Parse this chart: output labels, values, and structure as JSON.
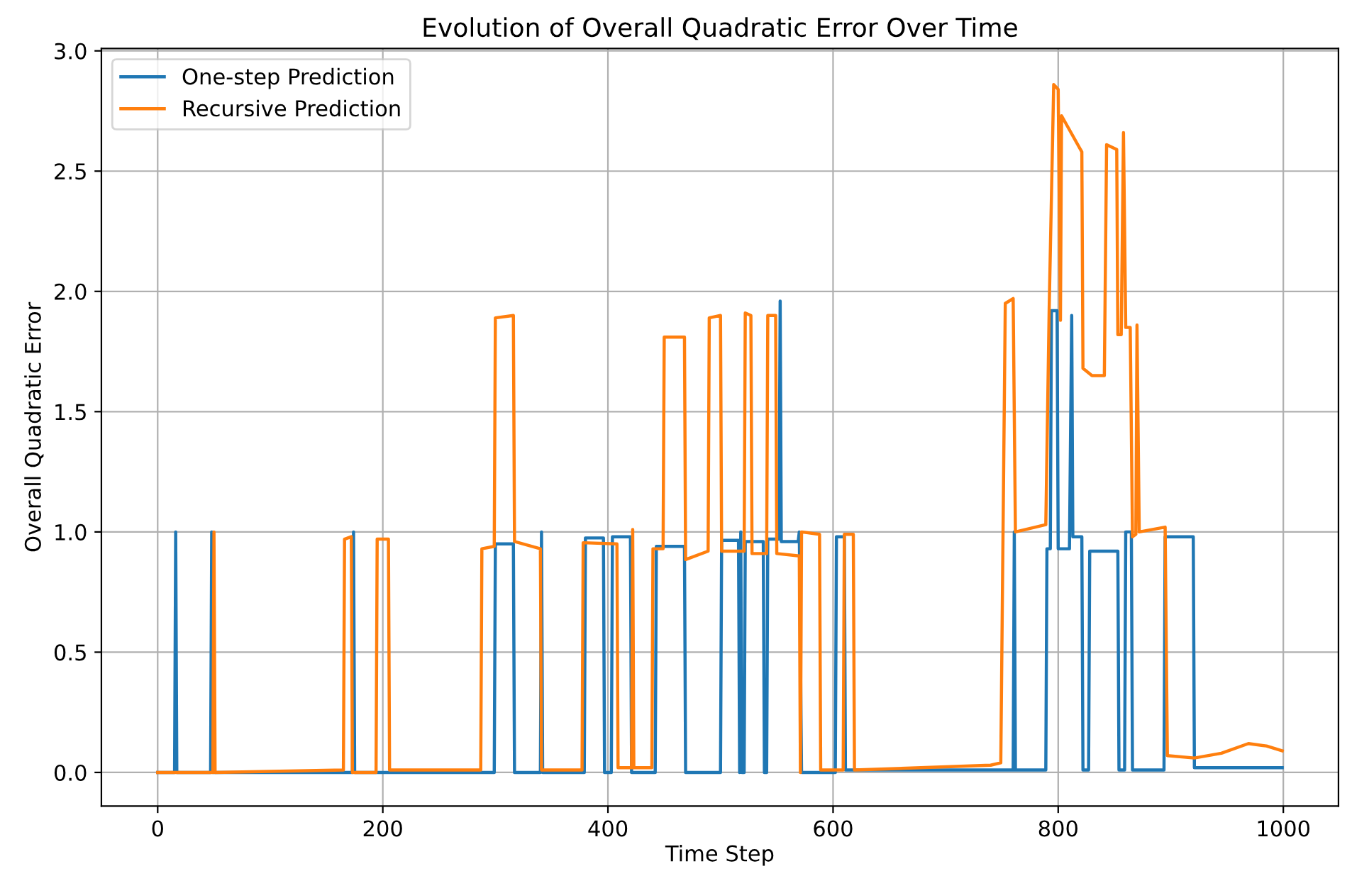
{
  "chart_data": {
    "type": "line",
    "title": "Evolution of Overall Quadratic Error Over Time",
    "xlabel": "Time Step",
    "ylabel": "Overall Quadratic Error",
    "xlim": [
      -50,
      1049
    ],
    "ylim": [
      -0.14,
      3.01
    ],
    "xticks": [
      0,
      200,
      400,
      600,
      800,
      1000
    ],
    "yticks": [
      {
        "value": 0,
        "label": "0.0"
      },
      {
        "value": 0.5,
        "label": "0.5"
      },
      {
        "value": 1,
        "label": "1.0"
      },
      {
        "value": 1.5,
        "label": "1.5"
      },
      {
        "value": 2,
        "label": "2.0"
      },
      {
        "value": 2.5,
        "label": "2.5"
      },
      {
        "value": 3,
        "label": "3.0"
      }
    ],
    "grid": true,
    "legend": "top left",
    "line_style": "solid",
    "marker": "none",
    "series": [
      {
        "name": "One-step Prediction",
        "color": "#1f77b4",
        "x": [
          0,
          15,
          16,
          17,
          47,
          48,
          49,
          173,
          174,
          175,
          299,
          300,
          316,
          317,
          340,
          341,
          342,
          379,
          380,
          396,
          397,
          403,
          404,
          420,
          421,
          442,
          443,
          468,
          469,
          500,
          501,
          516,
          517,
          518,
          519,
          521,
          522,
          538,
          539,
          541,
          542,
          552,
          553,
          554,
          569,
          570,
          572,
          602,
          603,
          610,
          611,
          760,
          761,
          762,
          789,
          790,
          793,
          794,
          799,
          800,
          810,
          812,
          813,
          821,
          822,
          827,
          828,
          853,
          854,
          859,
          860,
          865,
          866,
          894,
          895,
          920,
          921,
          999
        ],
        "values": [
          0,
          0,
          1.0,
          0,
          0,
          1.0,
          0,
          0,
          1.0,
          0,
          0,
          0.95,
          0.95,
          0,
          0,
          1.0,
          0,
          0,
          0.975,
          0.975,
          0,
          0,
          0.98,
          0.98,
          0,
          0,
          0.94,
          0.94,
          0,
          0,
          0.965,
          0.965,
          0,
          1.0,
          0,
          0,
          0.96,
          0.96,
          0,
          0,
          0.97,
          0.97,
          1.96,
          0.96,
          0.96,
          1.0,
          0,
          0,
          0.98,
          0.98,
          0.01,
          0.01,
          1.0,
          0.01,
          0.01,
          0.93,
          0.93,
          1.92,
          1.92,
          0.93,
          0.93,
          1.9,
          0.98,
          0.98,
          0.01,
          0.01,
          0.92,
          0.92,
          0.01,
          0.01,
          1.0,
          1.0,
          0.01,
          0.01,
          0.98,
          0.98,
          0.02,
          0.02
        ]
      },
      {
        "name": "Recursive Prediction",
        "color": "#ff7f0e",
        "x": [
          0,
          49,
          50,
          51,
          165,
          166,
          172,
          173,
          194,
          195,
          205,
          206,
          287,
          288,
          299,
          300,
          316,
          317,
          340,
          341,
          377,
          378,
          408,
          409,
          421,
          422,
          423,
          439,
          440,
          449,
          450,
          468,
          469,
          489,
          490,
          500,
          501,
          521,
          522,
          527,
          528,
          541,
          542,
          549,
          550,
          570,
          571,
          572,
          588,
          589,
          609,
          610,
          618,
          619,
          740,
          749,
          751,
          753,
          760,
          762,
          789,
          792,
          796,
          800,
          802,
          803,
          821,
          822,
          830,
          841,
          843,
          852,
          853,
          856,
          858,
          860,
          864,
          866,
          869,
          870,
          872,
          895,
          897,
          921,
          945,
          969,
          985,
          999
        ],
        "values": [
          0,
          0,
          1.0,
          0,
          0.01,
          0.97,
          0.98,
          0,
          0,
          0.97,
          0.97,
          0.01,
          0.01,
          0.93,
          0.94,
          1.89,
          1.9,
          0.96,
          0.93,
          0.01,
          0.01,
          0.955,
          0.95,
          0.02,
          0.02,
          1.01,
          0.02,
          0.02,
          0.93,
          0.93,
          1.81,
          1.81,
          0.885,
          0.92,
          1.89,
          1.9,
          0.92,
          0.92,
          1.91,
          1.9,
          0.91,
          0.91,
          1.9,
          1.9,
          0.91,
          0.9,
          0,
          1.0,
          0.99,
          0.01,
          0.01,
          0.99,
          0.99,
          0.01,
          0.03,
          0.04,
          1.0,
          1.95,
          1.97,
          1.0,
          1.03,
          1.93,
          2.86,
          2.84,
          1.88,
          2.73,
          2.58,
          1.68,
          1.65,
          1.65,
          2.61,
          2.59,
          1.82,
          1.82,
          2.66,
          1.85,
          1.85,
          0.98,
          0.99,
          1.86,
          1.0,
          1.02,
          0.07,
          0.06,
          0.08,
          0.12,
          0.11,
          0.09
        ]
      }
    ]
  }
}
